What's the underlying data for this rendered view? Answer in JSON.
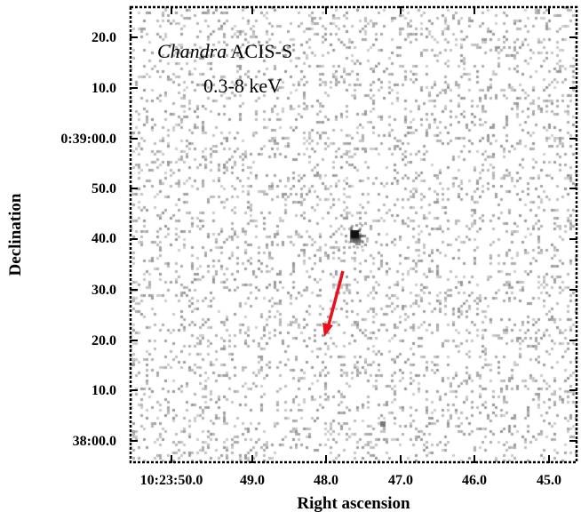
{
  "instrument_italic": "Chandra",
  "instrument_rest": "ACIS-S",
  "energy_band": "0.3-8 keV",
  "y_axis": {
    "label": "Declination",
    "ticks": [
      "20.0",
      "10.0",
      "0:39:00.0",
      "50.0",
      "40.0",
      "30.0",
      "20.0",
      "10.0",
      "38:00.0"
    ]
  },
  "x_axis": {
    "label": "Right ascension",
    "ticks": [
      "10:23:50.0",
      "49.0",
      "48.0",
      "47.0",
      "46.0",
      "45.0"
    ]
  },
  "colors": {
    "arrow": "#e8101a",
    "background": "#ffffff",
    "counts": "#9a9a9a"
  }
}
